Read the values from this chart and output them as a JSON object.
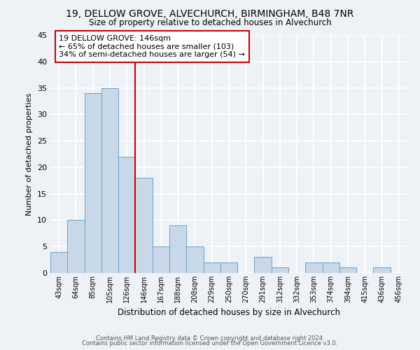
{
  "title1": "19, DELLOW GROVE, ALVECHURCH, BIRMINGHAM, B48 7NR",
  "title2": "Size of property relative to detached houses in Alvechurch",
  "xlabel": "Distribution of detached houses by size in Alvechurch",
  "ylabel": "Number of detached properties",
  "bin_labels": [
    "43sqm",
    "64sqm",
    "85sqm",
    "105sqm",
    "126sqm",
    "146sqm",
    "167sqm",
    "188sqm",
    "208sqm",
    "229sqm",
    "250sqm",
    "270sqm",
    "291sqm",
    "312sqm",
    "332sqm",
    "353sqm",
    "374sqm",
    "394sqm",
    "415sqm",
    "436sqm",
    "456sqm"
  ],
  "bar_values": [
    4,
    10,
    34,
    35,
    22,
    18,
    5,
    9,
    5,
    2,
    2,
    0,
    3,
    1,
    0,
    2,
    2,
    1,
    0,
    1,
    0
  ],
  "bar_color": "#c8d8e8",
  "bar_edge_color": "#6aa0c8",
  "property_line_idx": 5,
  "property_line_color": "#cc0000",
  "annotation_line1": "19 DELLOW GROVE: 146sqm",
  "annotation_line2": "← 65% of detached houses are smaller (103)",
  "annotation_line3": "34% of semi-detached houses are larger (54) →",
  "annotation_box_color": "#ffffff",
  "annotation_box_edge": "#cc0000",
  "ylim": [
    0,
    45
  ],
  "yticks": [
    0,
    5,
    10,
    15,
    20,
    25,
    30,
    35,
    40,
    45
  ],
  "footer1": "Contains HM Land Registry data © Crown copyright and database right 2024.",
  "footer2": "Contains public sector information licensed under the Open Government Licence v3.0.",
  "bg_color": "#eef2f7"
}
